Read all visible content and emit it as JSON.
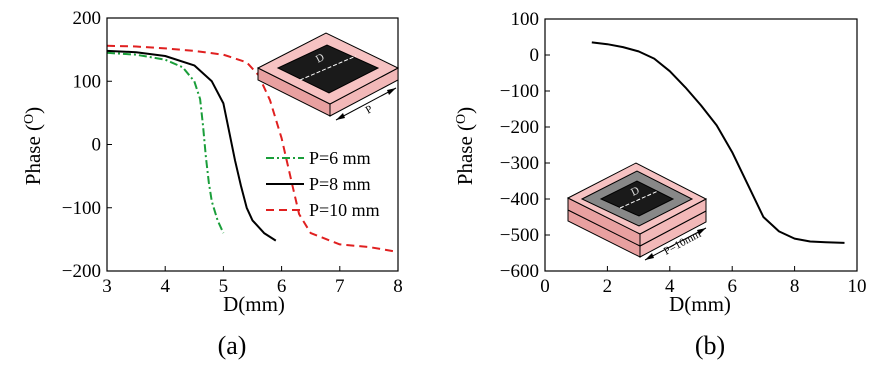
{
  "chart_data": [
    {
      "type": "line",
      "panel_label": "(a)",
      "xlabel": "D(mm)",
      "ylabel_text": "Phase (",
      "ylabel_sup": "O",
      "ylabel_close": ")",
      "xlim": [
        3,
        8
      ],
      "ylim": [
        -200,
        200
      ],
      "xticks": [
        "3",
        "4",
        "5",
        "6",
        "7",
        "8"
      ],
      "yticks": [
        "200",
        "100",
        "0",
        "−100",
        "−200"
      ],
      "legend_position": "right",
      "colors": {
        "P6": "#1a9e3a",
        "P8": "#000000",
        "P10": "#e02020"
      },
      "series": [
        {
          "name": "P=6 mm",
          "style": "dash-dot",
          "color_key": "P6",
          "x": [
            3.0,
            3.5,
            4.0,
            4.3,
            4.5,
            4.6,
            4.65,
            4.7,
            4.75,
            4.8,
            4.9,
            5.0
          ],
          "y": [
            145,
            142,
            134,
            122,
            100,
            72,
            30,
            -20,
            -60,
            -90,
            -120,
            -140
          ]
        },
        {
          "name": "P=8 mm",
          "style": "solid",
          "color_key": "P8",
          "x": [
            3.0,
            3.5,
            4.0,
            4.5,
            4.8,
            5.0,
            5.1,
            5.2,
            5.3,
            5.4,
            5.5,
            5.7,
            5.9
          ],
          "y": [
            148,
            146,
            140,
            125,
            100,
            65,
            20,
            -25,
            -65,
            -100,
            -120,
            -140,
            -152
          ]
        },
        {
          "name": "P=10 mm",
          "style": "dashed",
          "color_key": "P10",
          "x": [
            3.0,
            3.5,
            4.0,
            4.5,
            5.0,
            5.4,
            5.6,
            5.8,
            5.9,
            6.0,
            6.1,
            6.2,
            6.3,
            6.5,
            7.0,
            7.5,
            8.0
          ],
          "y": [
            156,
            155,
            152,
            148,
            142,
            130,
            110,
            70,
            40,
            10,
            -30,
            -70,
            -110,
            -140,
            -158,
            -162,
            -170
          ]
        }
      ],
      "inset_labels": [
        "D",
        "P"
      ]
    },
    {
      "type": "line",
      "panel_label": "(b)",
      "xlabel": "D(mm)",
      "ylabel_text": "Phase (",
      "ylabel_sup": "O",
      "ylabel_close": ")",
      "xlim": [
        0,
        10
      ],
      "ylim": [
        -600,
        100
      ],
      "xticks": [
        "0",
        "2",
        "4",
        "6",
        "8",
        "10"
      ],
      "yticks": [
        "100",
        "0",
        "−100",
        "−200",
        "−300",
        "−400",
        "−500",
        "−600"
      ],
      "colors": {
        "curve": "#000000"
      },
      "series": [
        {
          "style": "solid",
          "x": [
            1.5,
            2.0,
            2.5,
            3.0,
            3.5,
            4.0,
            4.5,
            5.0,
            5.5,
            6.0,
            6.5,
            7.0,
            7.5,
            8.0,
            8.5,
            9.0,
            9.6
          ],
          "y": [
            35,
            30,
            22,
            10,
            -10,
            -45,
            -90,
            -140,
            -195,
            -270,
            -360,
            -450,
            -490,
            -510,
            -518,
            -520,
            -522
          ]
        }
      ],
      "inset_labels": [
        "D",
        "P=10mm"
      ]
    }
  ]
}
